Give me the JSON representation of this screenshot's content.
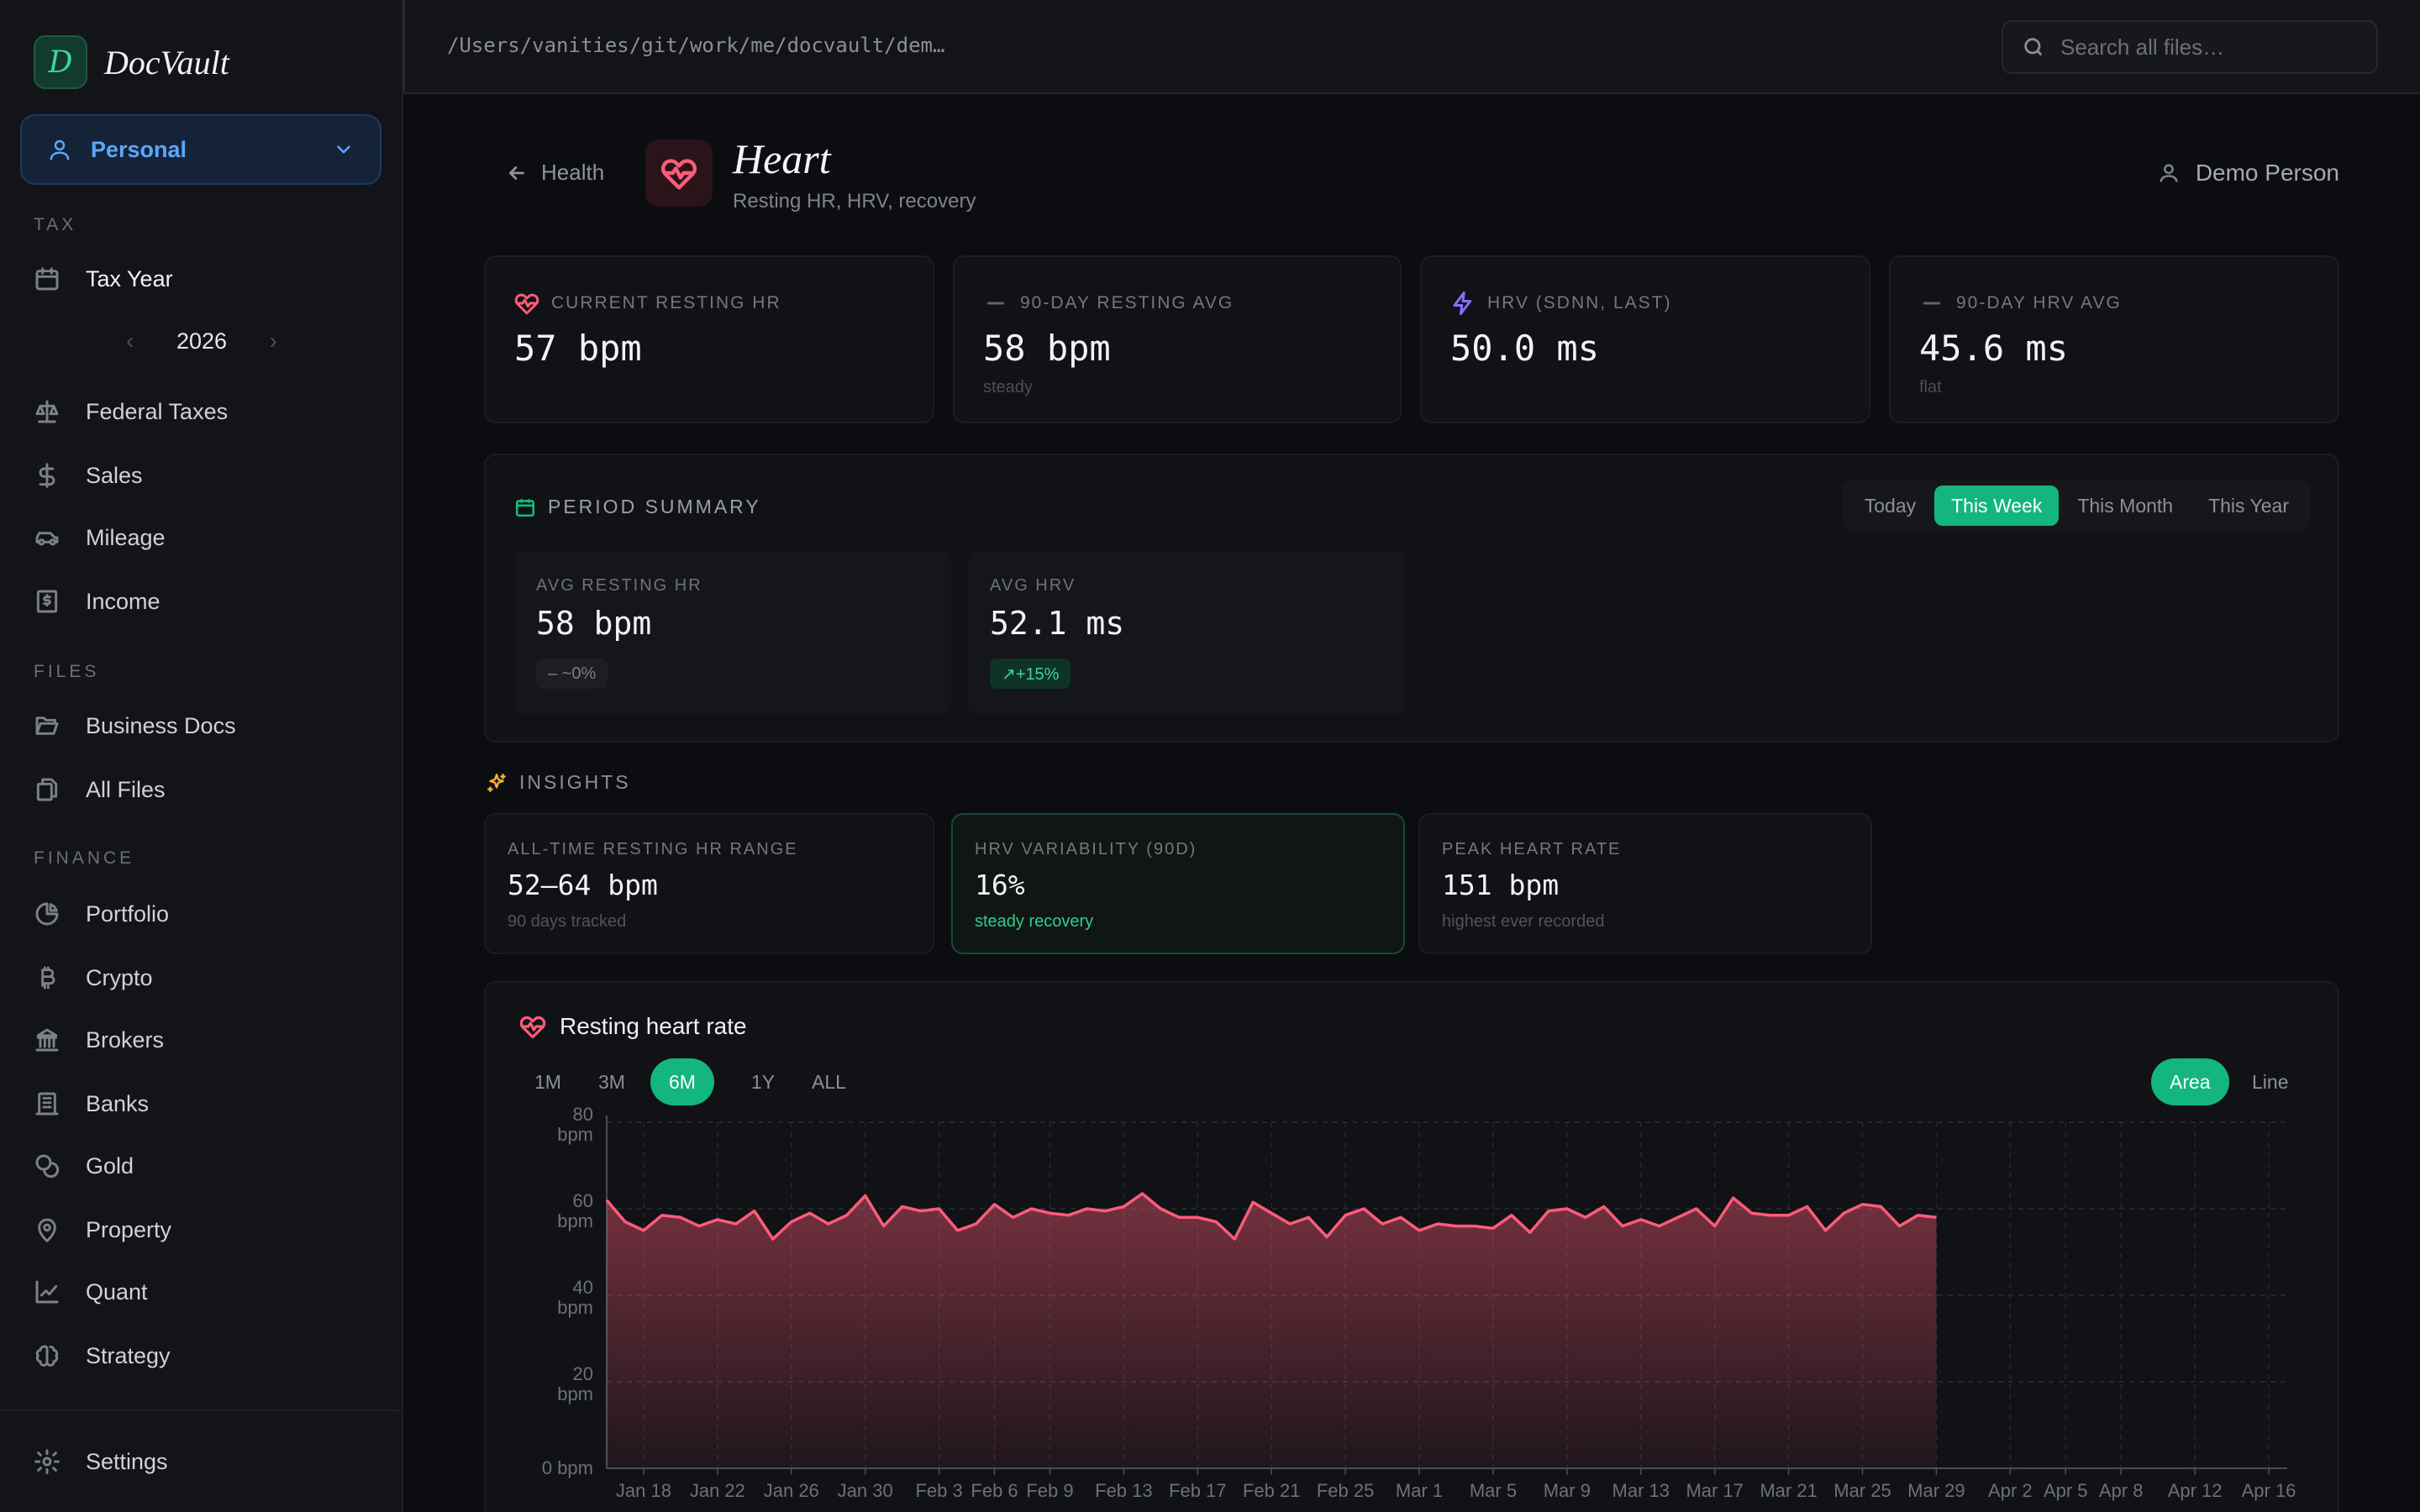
{
  "brand": {
    "logo_letter": "D",
    "name": "DocVault"
  },
  "profile": {
    "label": "Personal"
  },
  "sidebar": {
    "sections": {
      "tax": "TAX",
      "files": "FILES",
      "finance": "FINANCE"
    },
    "tax_year": {
      "label": "Tax Year",
      "year": "2026",
      "prev": "‹",
      "next": "›"
    },
    "items": {
      "federal": "Federal Taxes",
      "sales": "Sales",
      "mileage": "Mileage",
      "income": "Income",
      "business_docs": "Business Docs",
      "all_files": "All Files",
      "portfolio": "Portfolio",
      "crypto": "Crypto",
      "brokers": "Brokers",
      "banks": "Banks",
      "gold": "Gold",
      "property": "Property",
      "quant": "Quant",
      "strategy": "Strategy",
      "settings": "Settings"
    }
  },
  "topbar": {
    "path": "/Users/vanities/git/work/me/docvault/dem…",
    "search_placeholder": "Search all files…"
  },
  "header": {
    "back_label": "Health",
    "title": "Heart",
    "subtitle": "Resting HR, HRV, recovery",
    "user": "Demo Person"
  },
  "stats": [
    {
      "label": "CURRENT RESTING HR",
      "value": "57 bpm",
      "note": "",
      "icon": "heart-pulse-icon"
    },
    {
      "label": "90-DAY RESTING AVG",
      "value": "58 bpm",
      "note": "steady",
      "icon": "dash-icon"
    },
    {
      "label": "HRV (SDNN, LAST)",
      "value": "50.0 ms",
      "note": "",
      "icon": "lightning-icon"
    },
    {
      "label": "90-DAY HRV AVG",
      "value": "45.6 ms",
      "note": "flat",
      "icon": "dash-icon"
    }
  ],
  "period_summary": {
    "title": "PERIOD SUMMARY",
    "tabs": [
      "Today",
      "This Week",
      "This Month",
      "This Year"
    ],
    "selected": "This Week",
    "cards": [
      {
        "label": "AVG RESTING HR",
        "value": "58 bpm",
        "change": "– ~0%"
      },
      {
        "label": "AVG HRV",
        "value": "52.1 ms",
        "change": "↗+15%"
      }
    ]
  },
  "insights": {
    "title": "INSIGHTS",
    "cards": [
      {
        "label": "ALL-TIME RESTING HR RANGE",
        "value": "52–64 bpm",
        "note": "90 days tracked"
      },
      {
        "label": "HRV VARIABILITY (90D)",
        "value": "16%",
        "note": "steady recovery"
      },
      {
        "label": "PEAK HEART RATE",
        "value": "151 bpm",
        "note": "highest ever recorded"
      }
    ]
  },
  "chart_panel": {
    "title": "Resting heart rate",
    "ranges": [
      "1M",
      "3M",
      "6M",
      "1Y",
      "ALL"
    ],
    "selected_range": "6M",
    "modes": [
      "Area",
      "Line"
    ],
    "selected_mode": "Area"
  },
  "colors": {
    "accent": "#13b67c",
    "heart": "#ff5c7a",
    "hrv": "#8b6cff",
    "insight": "#f0b23a"
  },
  "chart_data": {
    "type": "area",
    "title": "Resting heart rate",
    "ylim": [
      0,
      80
    ],
    "y_ticks": [
      {
        "value": 80,
        "label": "80\nbpm"
      },
      {
        "value": 60,
        "label": "60\nbpm"
      },
      {
        "value": 40,
        "label": "40\nbpm"
      },
      {
        "value": 20,
        "label": "20\nbpm"
      },
      {
        "value": 0,
        "label": "0 bpm"
      }
    ],
    "x_start": "Jan 16",
    "x_end": "Apr 17",
    "x_ticks": [
      "Jan 18",
      "Jan 22",
      "Jan 26",
      "Jan 30",
      "Feb 3",
      "Feb 6",
      "Feb 9",
      "Feb 13",
      "Feb 17",
      "Feb 21",
      "Feb 25",
      "Mar 1",
      "Mar 5",
      "Mar 9",
      "Mar 13",
      "Mar 17",
      "Mar 21",
      "Mar 25",
      "Mar 29",
      "Apr 2",
      "Apr 5",
      "Apr 8",
      "Apr 12",
      "Apr 16"
    ],
    "grid": true,
    "series": [
      {
        "values": [
          {
            "x": "Jan 16",
            "y": 62
          },
          {
            "x": "Jan 17",
            "y": 57
          },
          {
            "x": "Jan 18",
            "y": 55
          },
          {
            "x": "Jan 19",
            "y": 58.5
          },
          {
            "x": "Jan 20",
            "y": 58
          },
          {
            "x": "Jan 21",
            "y": 56
          },
          {
            "x": "Jan 22",
            "y": 57.5
          },
          {
            "x": "Jan 23",
            "y": 56.5
          },
          {
            "x": "Jan 24",
            "y": 59.5
          },
          {
            "x": "Jan 25",
            "y": 53
          },
          {
            "x": "Jan 26",
            "y": 57
          },
          {
            "x": "Jan 27",
            "y": 59
          },
          {
            "x": "Jan 28",
            "y": 56.5
          },
          {
            "x": "Jan 29",
            "y": 58.5
          },
          {
            "x": "Jan 30",
            "y": 63
          },
          {
            "x": "Jan 31",
            "y": 56
          },
          {
            "x": "Feb 1",
            "y": 60.5
          },
          {
            "x": "Feb 2",
            "y": 59.5
          },
          {
            "x": "Feb 3",
            "y": 60
          },
          {
            "x": "Feb 4",
            "y": 55
          },
          {
            "x": "Feb 5",
            "y": 56.5
          },
          {
            "x": "Feb 6",
            "y": 61
          },
          {
            "x": "Feb 7",
            "y": 58
          },
          {
            "x": "Feb 8",
            "y": 60
          },
          {
            "x": "Feb 9",
            "y": 59
          },
          {
            "x": "Feb 10",
            "y": 58.5
          },
          {
            "x": "Feb 11",
            "y": 60
          },
          {
            "x": "Feb 12",
            "y": 59.5
          },
          {
            "x": "Feb 13",
            "y": 60.5
          },
          {
            "x": "Feb 14",
            "y": 63.5
          },
          {
            "x": "Feb 15",
            "y": 60
          },
          {
            "x": "Feb 16",
            "y": 58
          },
          {
            "x": "Feb 17",
            "y": 58
          },
          {
            "x": "Feb 18",
            "y": 57
          },
          {
            "x": "Feb 19",
            "y": 53
          },
          {
            "x": "Feb 20",
            "y": 61.5
          },
          {
            "x": "Feb 21",
            "y": 59
          },
          {
            "x": "Feb 22",
            "y": 56.5
          },
          {
            "x": "Feb 23",
            "y": 58
          },
          {
            "x": "Feb 24",
            "y": 53.5
          },
          {
            "x": "Feb 25",
            "y": 58.5
          },
          {
            "x": "Feb 26",
            "y": 60
          },
          {
            "x": "Feb 27",
            "y": 56.5
          },
          {
            "x": "Feb 28",
            "y": 58
          },
          {
            "x": "Mar 1",
            "y": 55
          },
          {
            "x": "Mar 2",
            "y": 56.5
          },
          {
            "x": "Mar 3",
            "y": 56
          },
          {
            "x": "Mar 4",
            "y": 56
          },
          {
            "x": "Mar 5",
            "y": 55.5
          },
          {
            "x": "Mar 6",
            "y": 58.5
          },
          {
            "x": "Mar 7",
            "y": 54.5
          },
          {
            "x": "Mar 8",
            "y": 59.5
          },
          {
            "x": "Mar 9",
            "y": 60
          },
          {
            "x": "Mar 10",
            "y": 58
          },
          {
            "x": "Mar 11",
            "y": 60.5
          },
          {
            "x": "Mar 12",
            "y": 56
          },
          {
            "x": "Mar 13",
            "y": 57.5
          },
          {
            "x": "Mar 14",
            "y": 56
          },
          {
            "x": "Mar 15",
            "y": 58
          },
          {
            "x": "Mar 16",
            "y": 60
          },
          {
            "x": "Mar 17",
            "y": 56
          },
          {
            "x": "Mar 18",
            "y": 62.5
          },
          {
            "x": "Mar 19",
            "y": 59
          },
          {
            "x": "Mar 20",
            "y": 58.5
          },
          {
            "x": "Mar 21",
            "y": 58.5
          },
          {
            "x": "Mar 22",
            "y": 60.5
          },
          {
            "x": "Mar 23",
            "y": 55
          },
          {
            "x": "Mar 24",
            "y": 59
          },
          {
            "x": "Mar 25",
            "y": 61
          },
          {
            "x": "Mar 26",
            "y": 60.5
          },
          {
            "x": "Mar 27",
            "y": 56
          },
          {
            "x": "Mar 28",
            "y": 58.5
          },
          {
            "x": "Mar 29",
            "y": 58
          }
        ]
      }
    ]
  }
}
